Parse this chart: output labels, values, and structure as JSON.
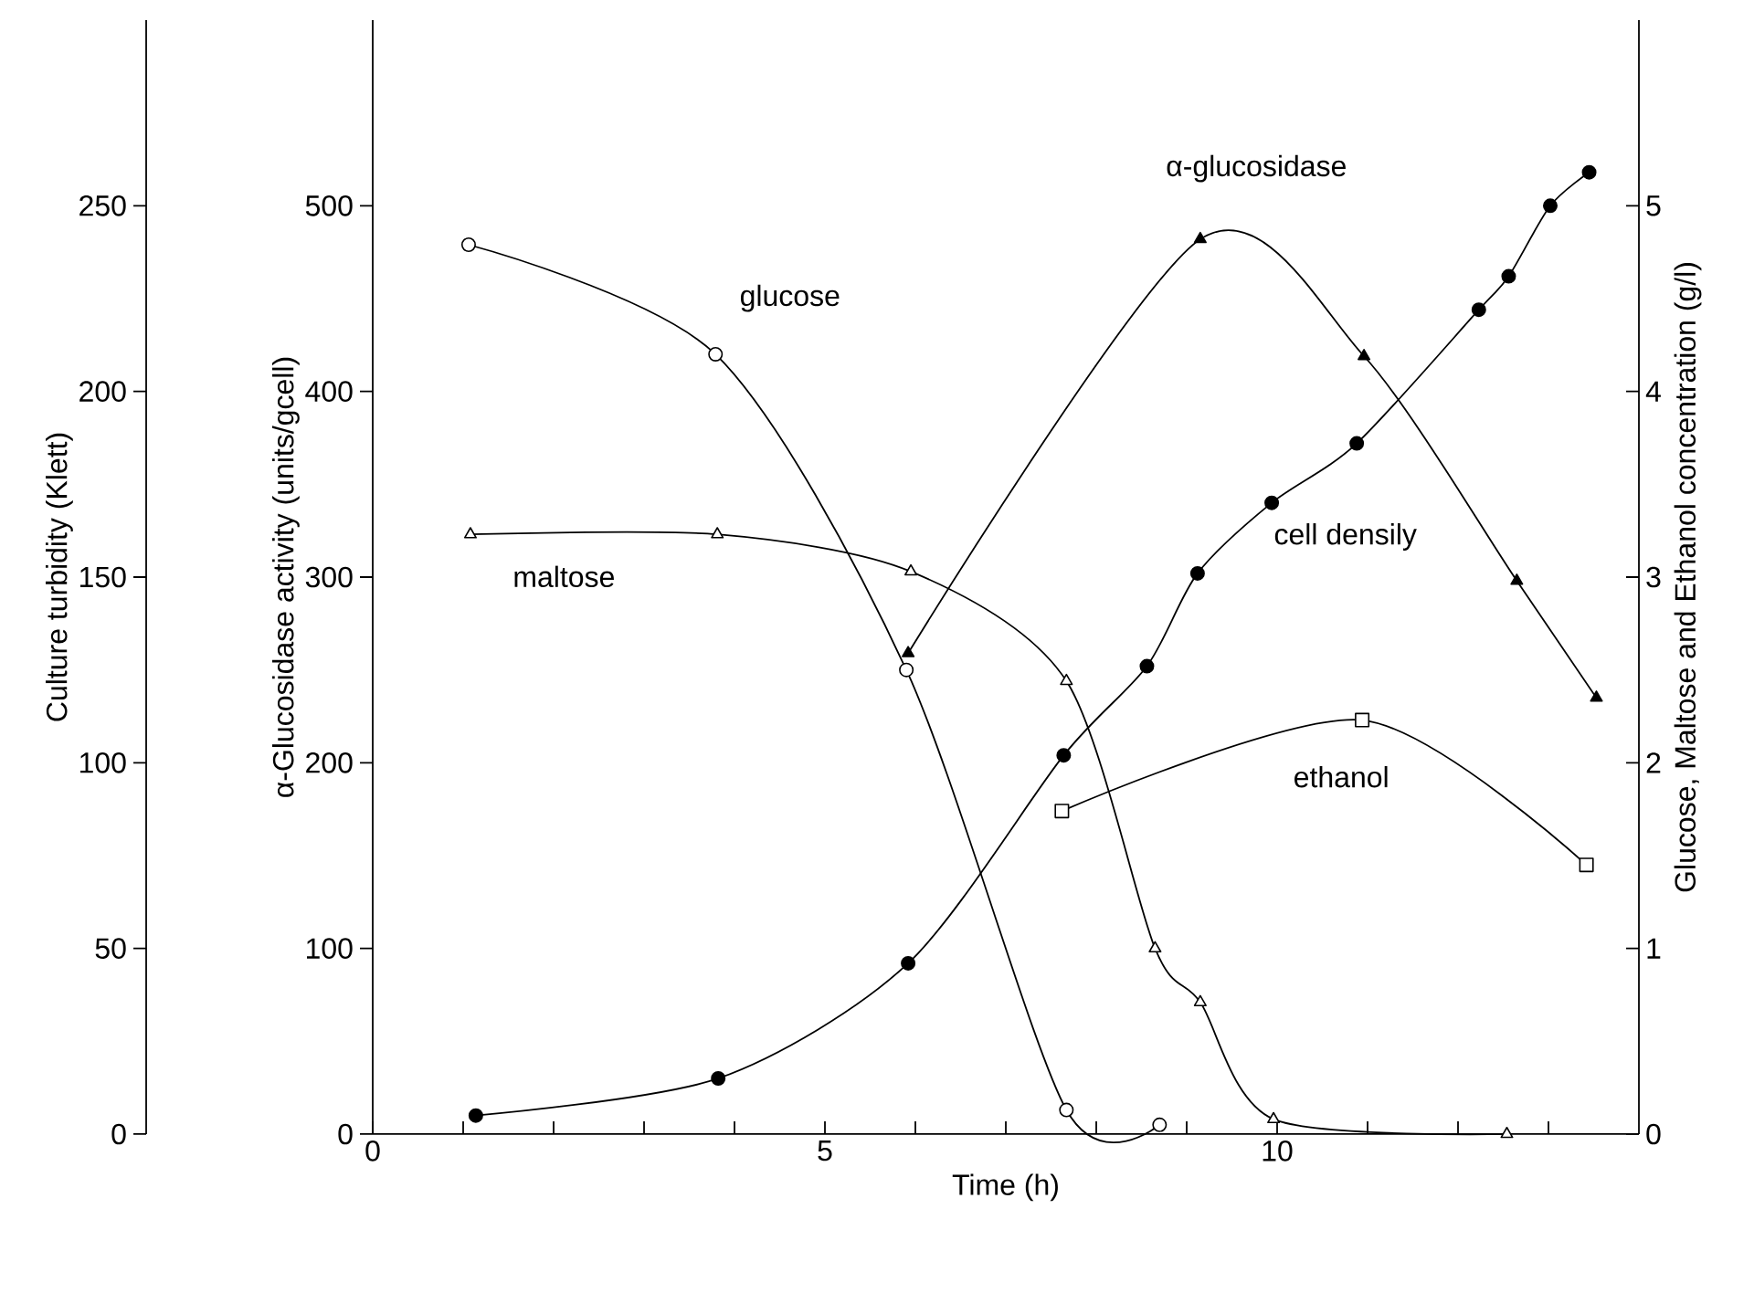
{
  "chart_data": {
    "type": "line",
    "xlabel": "Time (h)",
    "ylabel": "α-Glucosidase activity (units/gcell)",
    "y2label": "Glucose, Maltose and Ethanol concentration (g/l)",
    "y3label": "Culture turbidity (Klett)",
    "xlim": [
      0,
      14
    ],
    "xticks": [
      0,
      {
        "value": 1,
        "label": null
      },
      {
        "value": 2,
        "label": null
      },
      {
        "value": 3,
        "label": null
      },
      {
        "value": 4,
        "label": null
      },
      5,
      {
        "value": 6,
        "label": null
      },
      {
        "value": 7,
        "label": null
      },
      {
        "value": 8,
        "label": null
      },
      {
        "value": 9,
        "label": null
      },
      10,
      {
        "value": 11,
        "label": null
      },
      {
        "value": 12,
        "label": null
      },
      {
        "value": 13,
        "label": null
      }
    ],
    "ylim": [
      0,
      600
    ],
    "yticks": [
      0,
      100,
      200,
      300,
      400,
      500
    ],
    "y2lim": [
      0,
      6
    ],
    "y2ticks": [
      0,
      1,
      2,
      3,
      4,
      5
    ],
    "y3lim": [
      0,
      300
    ],
    "y3ticks": [
      0,
      50,
      100,
      150,
      200,
      250
    ],
    "series": [
      {
        "name": "glucose",
        "color": "#000000",
        "marker": "circle",
        "axis": "y2",
        "x": [
          1.06,
          3.79,
          5.9,
          7.67,
          8.7
        ],
        "values": [
          4.79,
          4.2,
          2.5,
          0.13,
          0.05
        ]
      },
      {
        "name": "maltose",
        "color": "#000000",
        "marker": "triangle",
        "axis": "y2",
        "x": [
          1.08,
          3.81,
          5.95,
          7.67,
          8.65,
          9.15,
          9.96,
          12.54
        ],
        "values": [
          3.23,
          3.23,
          3.03,
          2.44,
          1.0,
          0.71,
          0.08,
          0.0
        ]
      },
      {
        "name": "ethanol",
        "color": "#000000",
        "marker": "square",
        "axis": "y2",
        "x": [
          7.62,
          10.94,
          13.42
        ],
        "values": [
          1.74,
          2.23,
          1.45
        ]
      },
      {
        "name": "cell densily",
        "color": "#000000",
        "marker": "circle",
        "axis": "y3",
        "x": [
          1.14,
          3.82,
          5.92,
          7.64,
          8.56,
          9.12,
          9.94,
          10.88,
          12.23,
          12.56,
          13.02,
          13.45
        ],
        "values": [
          5,
          15,
          46,
          102,
          126,
          151,
          170,
          186,
          222,
          231,
          250,
          259
        ]
      },
      {
        "name": "α-glucosidase",
        "color": "#000000",
        "marker": "triangle",
        "axis": "y",
        "x": [
          5.92,
          9.15,
          10.96,
          12.65,
          13.53
        ],
        "values": [
          259,
          482,
          419,
          298,
          235
        ]
      }
    ]
  }
}
